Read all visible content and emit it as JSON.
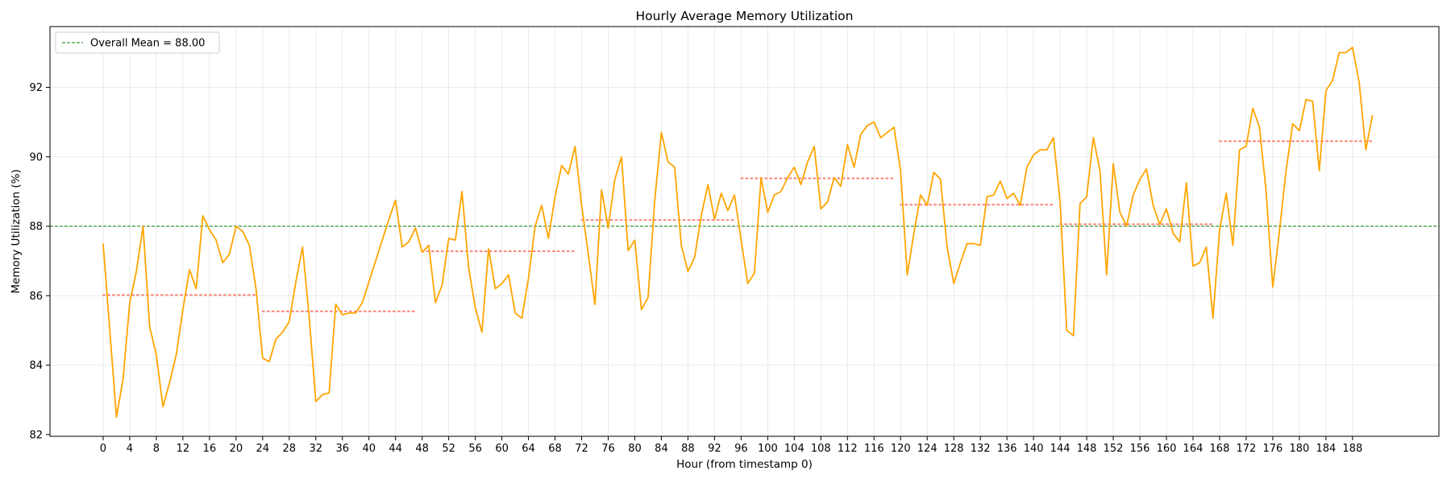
{
  "chart_data": {
    "type": "line",
    "title": "Hourly Average Memory Utilization",
    "xlabel": "Hour (from timestamp 0)",
    "ylabel": "Memory Utilization (%)",
    "xlim": [
      -8,
      201
    ],
    "ylim": [
      81.95,
      93.75
    ],
    "xticks": [
      0,
      4,
      8,
      12,
      16,
      20,
      24,
      28,
      32,
      36,
      40,
      44,
      48,
      52,
      56,
      60,
      64,
      68,
      72,
      76,
      80,
      84,
      88,
      92,
      96,
      100,
      104,
      108,
      112,
      116,
      120,
      124,
      128,
      132,
      136,
      140,
      144,
      148,
      152,
      156,
      160,
      164,
      168,
      172,
      176,
      180,
      184,
      188
    ],
    "yticks": [
      82,
      84,
      86,
      88,
      90,
      92
    ],
    "grid": true,
    "legend_placement": "top-left",
    "colors": {
      "series": "#ffa500",
      "mean": "#008000",
      "daily": "#fa8072"
    },
    "mean_line": {
      "label": "Overall Mean = 88.00",
      "value": 88.0
    },
    "daily_means": [
      {
        "start": 0,
        "end": 23,
        "value": 86.02
      },
      {
        "start": 24,
        "end": 47,
        "value": 85.55
      },
      {
        "start": 48,
        "end": 71,
        "value": 87.28
      },
      {
        "start": 72,
        "end": 95,
        "value": 88.18
      },
      {
        "start": 96,
        "end": 119,
        "value": 89.38
      },
      {
        "start": 120,
        "end": 143,
        "value": 88.62
      },
      {
        "start": 144,
        "end": 167,
        "value": 88.06
      },
      {
        "start": 168,
        "end": 191,
        "value": 90.45
      }
    ],
    "series": [
      {
        "values": [
          87.5,
          85.0,
          82.5,
          83.6,
          85.8,
          86.7,
          88.0,
          85.1,
          84.3,
          82.8,
          83.5,
          84.3,
          85.6,
          86.75,
          86.2,
          88.3,
          87.9,
          87.6,
          86.95,
          87.2,
          88.0,
          87.85,
          87.45,
          86.2,
          84.2,
          84.1,
          84.75,
          84.95,
          85.25,
          86.4,
          87.4,
          85.4,
          82.95,
          83.15,
          83.2,
          85.75,
          85.45,
          85.5,
          85.5,
          85.8,
          86.4,
          87.0,
          87.6,
          88.2,
          88.75,
          87.4,
          87.55,
          87.95,
          87.25,
          87.45,
          85.8,
          86.3,
          87.65,
          87.6,
          89.0,
          86.8,
          85.65,
          84.95,
          87.35,
          86.2,
          86.35,
          86.6,
          85.5,
          85.35,
          86.5,
          88.0,
          88.6,
          87.65,
          88.85,
          89.75,
          89.5,
          90.3,
          88.6,
          87.2,
          85.75,
          89.05,
          87.95,
          89.35,
          90.0,
          87.3,
          87.6,
          85.6,
          85.95,
          88.75,
          90.7,
          89.85,
          89.7,
          87.45,
          86.7,
          87.1,
          88.3,
          89.2,
          88.2,
          88.95,
          88.45,
          88.9,
          87.6,
          86.35,
          86.65,
          89.4,
          88.4,
          88.9,
          89.0,
          89.4,
          89.7,
          89.2,
          89.85,
          90.3,
          88.5,
          88.7,
          89.4,
          89.15,
          90.35,
          89.7,
          90.65,
          90.9,
          91.0,
          90.55,
          90.7,
          90.85,
          89.6,
          86.6,
          87.8,
          88.9,
          88.6,
          89.55,
          89.35,
          87.4,
          86.35,
          86.95,
          87.5,
          87.5,
          87.45,
          88.85,
          88.9,
          89.3,
          88.8,
          88.95,
          88.6,
          89.7,
          90.05,
          90.2,
          90.2,
          90.55,
          88.7,
          85.0,
          84.85,
          88.65,
          88.85,
          90.55,
          89.6,
          86.6,
          89.8,
          88.4,
          88.0,
          88.9,
          89.35,
          89.65,
          88.6,
          88.05,
          88.5,
          87.8,
          87.55,
          89.25,
          86.85,
          86.95,
          87.4,
          85.35,
          87.9,
          88.95,
          87.45,
          90.2,
          90.3,
          91.4,
          90.85,
          89.0,
          86.25,
          87.85,
          89.6,
          90.95,
          90.75,
          91.65,
          91.6,
          89.6,
          91.9,
          92.2,
          93.0,
          93.0,
          93.15,
          92.15,
          90.2,
          91.2
        ]
      }
    ]
  }
}
